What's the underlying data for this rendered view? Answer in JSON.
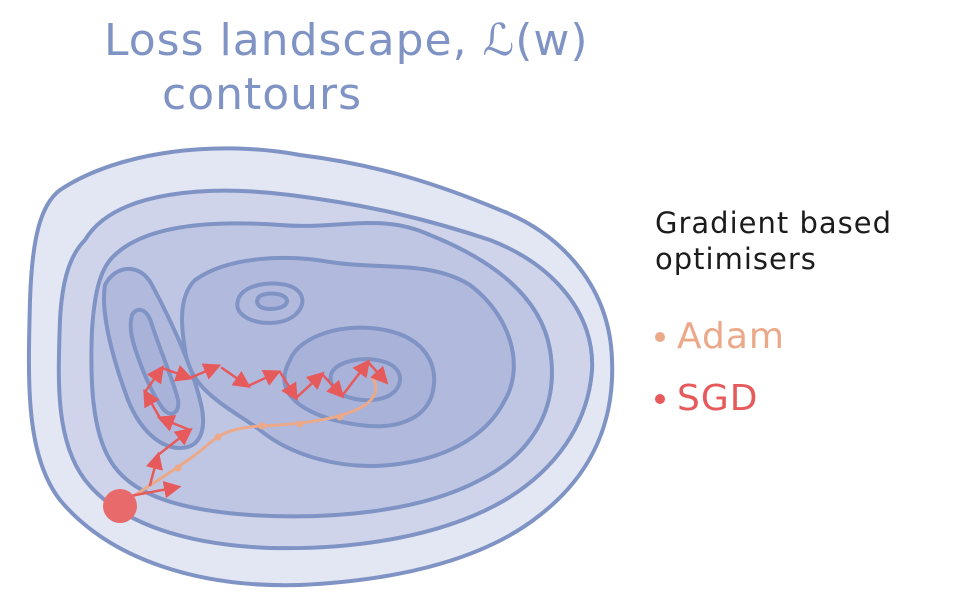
{
  "title": {
    "line1": "Loss landscape, ℒ(w)",
    "line2": "contours"
  },
  "legend": {
    "title": "Gradient based optimisers",
    "items": [
      {
        "label": "Adam",
        "color": "#eba98a"
      },
      {
        "label": "SGD",
        "color": "#e65a5c"
      }
    ]
  },
  "colors": {
    "contour_stroke": "#7f93c4",
    "fill_outer": "#e3e6f3",
    "fill_levels": [
      "#cfd4ea",
      "#bfc6e3",
      "#b1b9dc",
      "#a9b2d8"
    ],
    "start_point": "#e65a5c"
  }
}
